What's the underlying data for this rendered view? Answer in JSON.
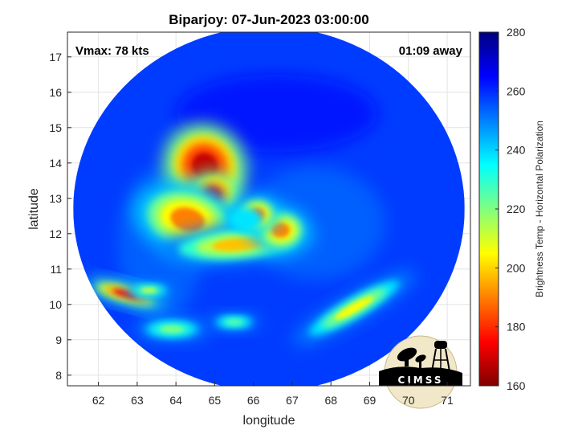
{
  "chart_data": {
    "type": "heatmap",
    "title": "Biparjoy: 07-Jun-2023 03:00:00",
    "annotations": {
      "vmax": "Vmax: 78 kts",
      "time_away": "01:09 away"
    },
    "xlabel": "longitude",
    "ylabel": "latitude",
    "xlim": [
      61.2,
      71.6
    ],
    "ylim": [
      7.7,
      17.7
    ],
    "xticks": [
      62,
      63,
      64,
      65,
      66,
      67,
      68,
      69,
      70,
      71
    ],
    "yticks": [
      8,
      9,
      10,
      11,
      12,
      13,
      14,
      15,
      16,
      17
    ],
    "grid": true,
    "colorbar": {
      "label": "Brightness Temp - Horizontal Polarization",
      "range": [
        160,
        280
      ],
      "ticks": [
        160,
        180,
        200,
        220,
        240,
        260,
        280
      ],
      "colormap": "jet",
      "colormap_reversed": true
    },
    "swath": {
      "center_lon": 66.4,
      "center_lat": 12.7,
      "radius_deg": 5.05,
      "background_temp": 258
    },
    "features": [
      {
        "name": "deep convection north-west of center",
        "lon": 64.75,
        "lat": 13.9,
        "temp": 168
      },
      {
        "name": "cold core band",
        "lon": 64.95,
        "lat": 13.1,
        "temp": 172
      },
      {
        "name": "western eyewall",
        "lon": 64.3,
        "lat": 12.4,
        "temp": 190
      },
      {
        "name": "southern eyewall",
        "lon": 65.6,
        "lat": 11.7,
        "temp": 198
      },
      {
        "name": "eastern eyewall",
        "lon": 66.7,
        "lat": 12.1,
        "temp": 190
      },
      {
        "name": "eyewall east tip",
        "lon": 66.1,
        "lat": 12.55,
        "temp": 188
      },
      {
        "name": "south-east outer band",
        "lon": 68.6,
        "lat": 9.9,
        "temp": 205
      },
      {
        "name": "south-west rain cell",
        "lon": 62.7,
        "lat": 10.3,
        "temp": 178
      },
      {
        "name": "south-west rain cell 2",
        "lon": 63.3,
        "lat": 10.4,
        "temp": 212
      },
      {
        "name": "southern rain cell",
        "lon": 63.9,
        "lat": 9.3,
        "temp": 220
      },
      {
        "name": "southern rain cell 2",
        "lon": 65.5,
        "lat": 9.5,
        "temp": 225
      }
    ],
    "eye": {
      "lon": 65.8,
      "lat": 12.4,
      "temp": 238
    }
  },
  "logo": {
    "text": "CIMSS",
    "colors": {
      "disc": "#f1e7c9",
      "ground": "#000000"
    }
  }
}
